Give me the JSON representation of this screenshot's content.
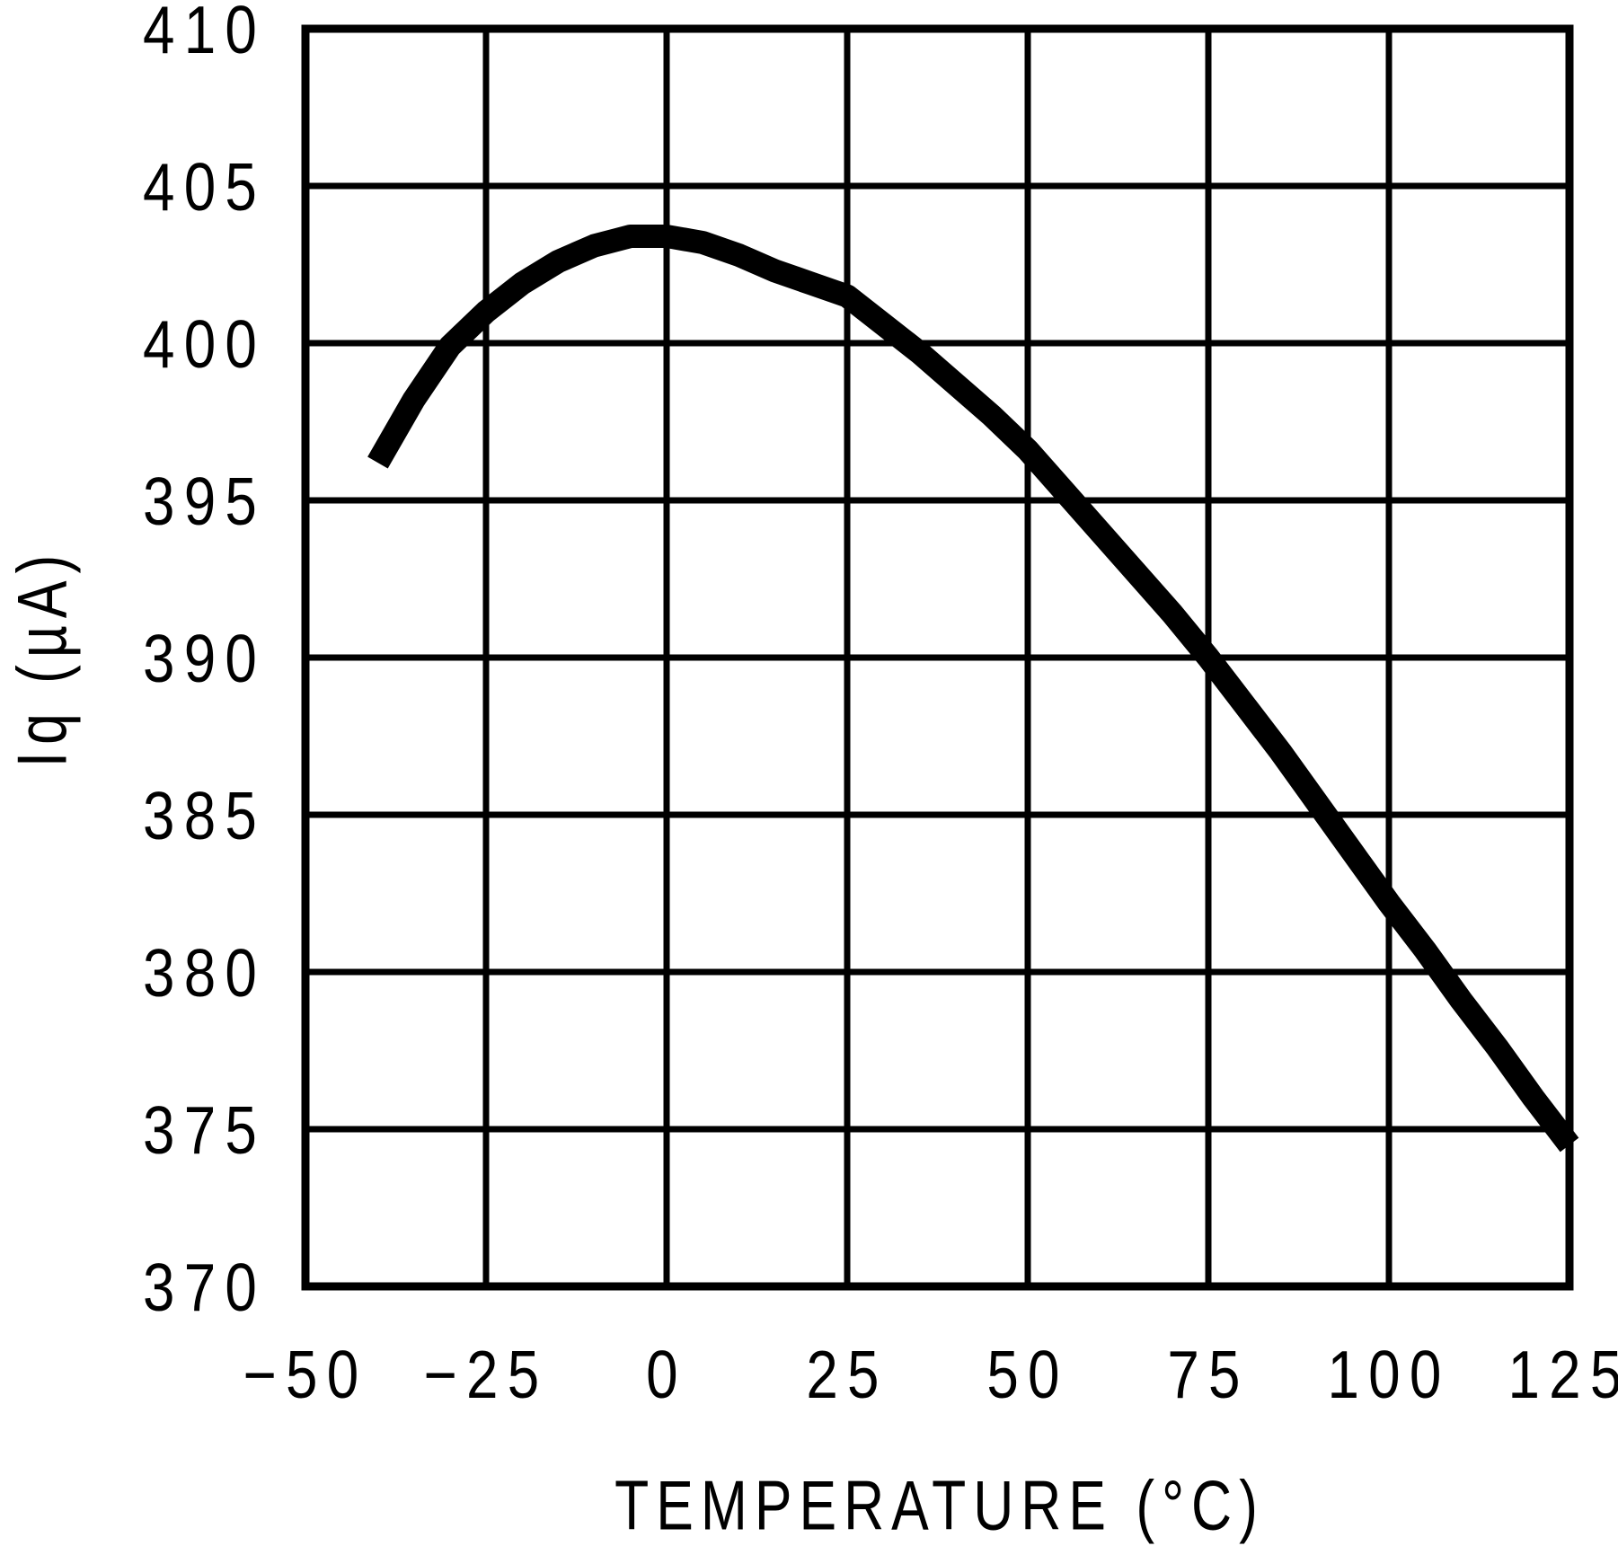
{
  "figure": {
    "background_color": "#ffffff",
    "foreground_color": "#000000"
  },
  "chart_data": {
    "type": "line",
    "title": "",
    "xlabel": "TEMPERATURE (°C)",
    "ylabel": "Iq (µA)",
    "xlim": [
      -50,
      125
    ],
    "ylim": [
      370,
      410
    ],
    "x_ticks": [
      -50,
      -25,
      0,
      25,
      50,
      75,
      100,
      125
    ],
    "x_tick_labels": [
      "−50",
      "−25",
      "0",
      "25",
      "50",
      "75",
      "100",
      "125"
    ],
    "y_ticks": [
      370,
      375,
      380,
      385,
      390,
      395,
      400,
      405,
      410
    ],
    "y_tick_labels": [
      "370",
      "375",
      "380",
      "385",
      "390",
      "395",
      "400",
      "405",
      "410"
    ],
    "grid": true,
    "legend_position": "none",
    "line_color": "#000000",
    "grid_color": "#000000",
    "series": [
      {
        "name": "Iq",
        "x": [
          -40,
          -35,
          -30,
          -25,
          -20,
          -15,
          -10,
          -5,
          0,
          5,
          10,
          15,
          20,
          25,
          30,
          35,
          40,
          45,
          50,
          55,
          60,
          65,
          70,
          75,
          80,
          85,
          90,
          95,
          100,
          105,
          110,
          115,
          120,
          125
        ],
        "y": [
          396.2,
          398.2,
          399.9,
          401.0,
          401.9,
          402.6,
          403.1,
          403.4,
          403.4,
          403.2,
          402.8,
          402.3,
          401.9,
          401.5,
          400.6,
          399.7,
          398.7,
          397.7,
          396.6,
          395.3,
          394.0,
          392.7,
          391.4,
          390.0,
          388.5,
          387.0,
          385.4,
          383.8,
          382.2,
          380.7,
          379.1,
          377.6,
          376.0,
          374.5
        ]
      }
    ]
  }
}
